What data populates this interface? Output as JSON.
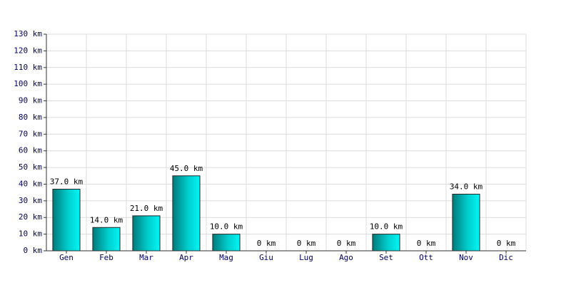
{
  "chart_data": {
    "type": "bar",
    "categories": [
      "Gen",
      "Feb",
      "Mar",
      "Apr",
      "Mag",
      "Giu",
      "Lug",
      "Ago",
      "Set",
      "Ott",
      "Nov",
      "Dic"
    ],
    "values": [
      37,
      14,
      21,
      45,
      10,
      0,
      0,
      0,
      10,
      0,
      34,
      0
    ],
    "value_labels": [
      "37.0 km",
      "14.0 km",
      "21.0 km",
      "45.0 km",
      "10.0 km",
      "0 km",
      "0 km",
      "0 km",
      "10.0 km",
      "0 km",
      "34.0 km",
      "0 km"
    ],
    "color": "#00cccc",
    "ylim": [
      0,
      130
    ],
    "yticks": [
      {
        "value": 0,
        "label": "0 km"
      },
      {
        "value": 10,
        "label": "10 km"
      },
      {
        "value": 20,
        "label": "20 km"
      },
      {
        "value": 30,
        "label": "30 km"
      },
      {
        "value": 40,
        "label": "40 km"
      },
      {
        "value": 50,
        "label": "50 km"
      },
      {
        "value": 60,
        "label": "60 km"
      },
      {
        "value": 70,
        "label": "70 km"
      },
      {
        "value": 80,
        "label": "80 km"
      },
      {
        "value": 90,
        "label": "90 km"
      },
      {
        "value": 100,
        "label": "100 km"
      },
      {
        "value": 110,
        "label": "110 km"
      },
      {
        "value": 120,
        "label": "120 km"
      },
      {
        "value": 130,
        "label": "130 km"
      }
    ],
    "grid": true
  }
}
